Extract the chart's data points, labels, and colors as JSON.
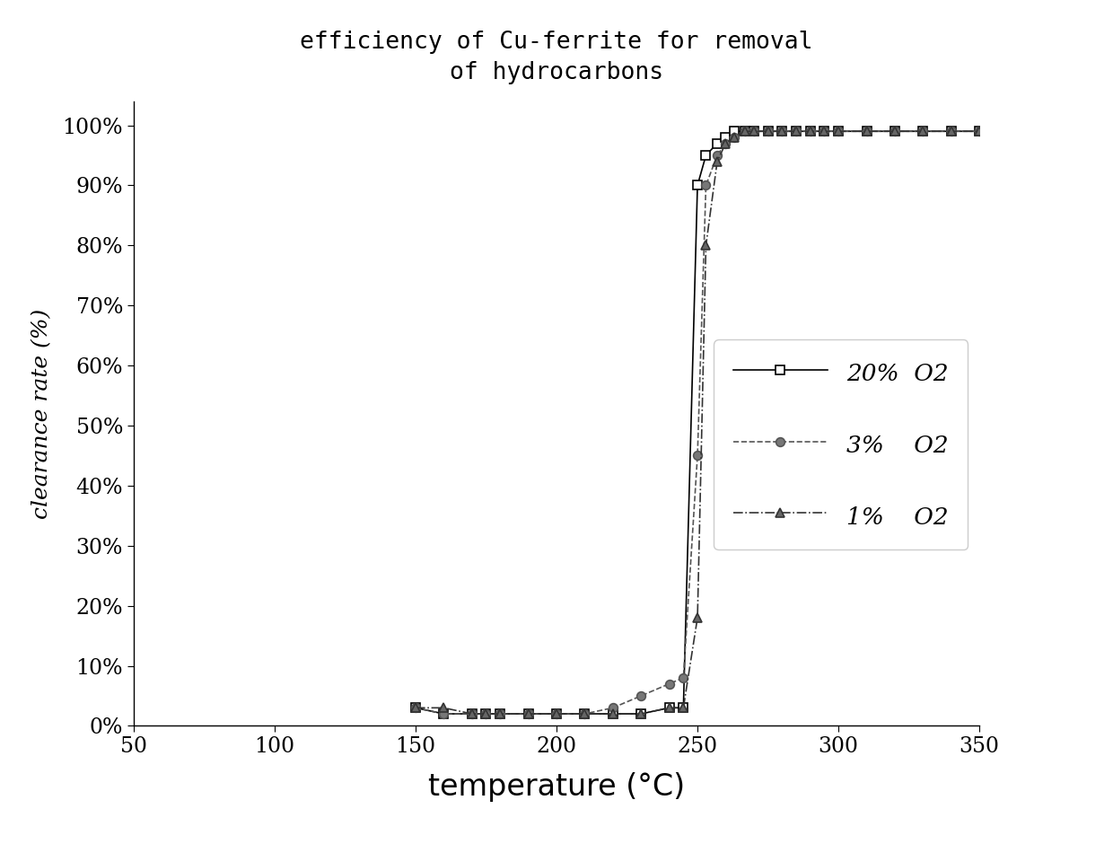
{
  "title_line1": "efficiency of Cu-ferrite for removal",
  "title_line2": "of hydrocarbons",
  "xlabel": "temperature (°C)",
  "ylabel": "clearance rate (%)",
  "xlim": [
    50,
    350
  ],
  "ylim": [
    0,
    1.04
  ],
  "xticks": [
    50,
    100,
    150,
    200,
    250,
    300,
    350
  ],
  "yticks": [
    0.0,
    0.1,
    0.2,
    0.3,
    0.4,
    0.5,
    0.6,
    0.7,
    0.8,
    0.9,
    1.0
  ],
  "series_order": [
    "20% O2",
    "3% O2",
    "1% O2"
  ],
  "series": {
    "20% O2": {
      "x": [
        150,
        160,
        170,
        175,
        180,
        190,
        200,
        210,
        220,
        230,
        240,
        245,
        250,
        253,
        257,
        260,
        263,
        267,
        270,
        275,
        280,
        285,
        290,
        295,
        300,
        310,
        320,
        330,
        340,
        350
      ],
      "y": [
        0.03,
        0.02,
        0.02,
        0.02,
        0.02,
        0.02,
        0.02,
        0.02,
        0.02,
        0.02,
        0.03,
        0.03,
        0.9,
        0.95,
        0.97,
        0.98,
        0.99,
        0.99,
        0.99,
        0.99,
        0.99,
        0.99,
        0.99,
        0.99,
        0.99,
        0.99,
        0.99,
        0.99,
        0.99,
        0.99
      ],
      "color": "#000000",
      "linestyle": "-",
      "marker": "s",
      "markersize": 7,
      "linewidth": 1.2,
      "markerfacecolor": "white",
      "label": "20%  O2"
    },
    "3% O2": {
      "x": [
        150,
        160,
        170,
        175,
        180,
        190,
        200,
        210,
        220,
        230,
        240,
        245,
        250,
        253,
        257,
        260,
        263,
        267,
        270,
        275,
        280,
        285,
        290,
        295,
        300,
        310,
        320,
        330,
        340,
        350
      ],
      "y": [
        0.03,
        0.02,
        0.02,
        0.02,
        0.02,
        0.02,
        0.02,
        0.02,
        0.03,
        0.05,
        0.07,
        0.08,
        0.45,
        0.9,
        0.95,
        0.97,
        0.98,
        0.99,
        0.99,
        0.99,
        0.99,
        0.99,
        0.99,
        0.99,
        0.99,
        0.99,
        0.99,
        0.99,
        0.99,
        0.99
      ],
      "color": "#555555",
      "linestyle": "--",
      "marker": "o",
      "markersize": 7,
      "linewidth": 1.2,
      "markerfacecolor": "#777777",
      "label": "3%    O2"
    },
    "1% O2": {
      "x": [
        150,
        160,
        170,
        175,
        180,
        190,
        200,
        210,
        220,
        230,
        240,
        245,
        250,
        253,
        257,
        260,
        263,
        267,
        270,
        275,
        280,
        285,
        290,
        295,
        300,
        310,
        320,
        330,
        340,
        350
      ],
      "y": [
        0.03,
        0.03,
        0.02,
        0.02,
        0.02,
        0.02,
        0.02,
        0.02,
        0.02,
        0.02,
        0.03,
        0.03,
        0.18,
        0.8,
        0.94,
        0.97,
        0.98,
        0.99,
        0.99,
        0.99,
        0.99,
        0.99,
        0.99,
        0.99,
        0.99,
        0.99,
        0.99,
        0.99,
        0.99,
        0.99
      ],
      "color": "#333333",
      "linestyle": "-.",
      "marker": "^",
      "markersize": 7,
      "linewidth": 1.2,
      "markerfacecolor": "#666666",
      "label": "1%    O2"
    }
  },
  "background_color": "#ffffff",
  "title_fontsize": 19,
  "xlabel_fontsize": 24,
  "ylabel_fontsize": 18,
  "tick_fontsize": 17,
  "legend_fontsize": 19
}
